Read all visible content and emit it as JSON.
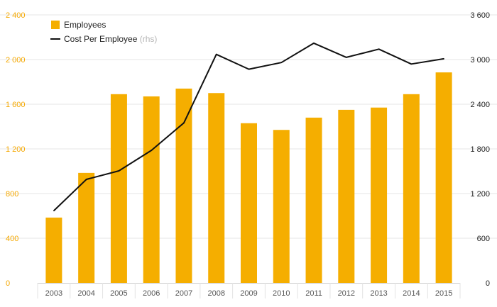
{
  "colors": {
    "bar": "#f5ae00",
    "line": "#111111",
    "left_axis_text": "#f5a800",
    "right_axis_text": "#222222",
    "grid": "#e6e6e6",
    "note": "#b5b5b5"
  },
  "legend": {
    "employees_label": "Employees",
    "cost_label": "Cost Per Employee",
    "cost_note": "(rhs)"
  },
  "chart_data": {
    "type": "bar",
    "categories": [
      "2003",
      "2004",
      "2005",
      "2006",
      "2007",
      "2008",
      "2009",
      "2010",
      "2011",
      "2012",
      "2013",
      "2014",
      "2015"
    ],
    "series": [
      {
        "name": "Employees",
        "type": "bar",
        "axis": "left",
        "values": [
          585,
          985,
          1690,
          1670,
          1740,
          1700,
          1430,
          1370,
          1480,
          1550,
          1570,
          1690,
          1885
        ]
      },
      {
        "name": "Cost Per Employee",
        "type": "line",
        "axis": "right",
        "values": [
          970,
          1390,
          1505,
          1780,
          2150,
          3070,
          2870,
          2960,
          3220,
          3030,
          3140,
          2940,
          3010
        ]
      }
    ],
    "y_left": {
      "ticks": [
        0,
        400,
        800,
        1200,
        1600,
        2000,
        2400
      ],
      "tick_labels": [
        "0",
        "400",
        "800",
        "1 200",
        "1 600",
        "2 000",
        "2 400"
      ],
      "range": [
        0,
        2400
      ]
    },
    "y_right": {
      "ticks": [
        0,
        600,
        1200,
        1800,
        2400,
        3000,
        3600
      ],
      "tick_labels": [
        "0",
        "600",
        "1 200",
        "1 800",
        "2 400",
        "3 000",
        "3 600"
      ],
      "range": [
        0,
        3600
      ]
    },
    "grid": true,
    "legend_position": "top-left"
  }
}
